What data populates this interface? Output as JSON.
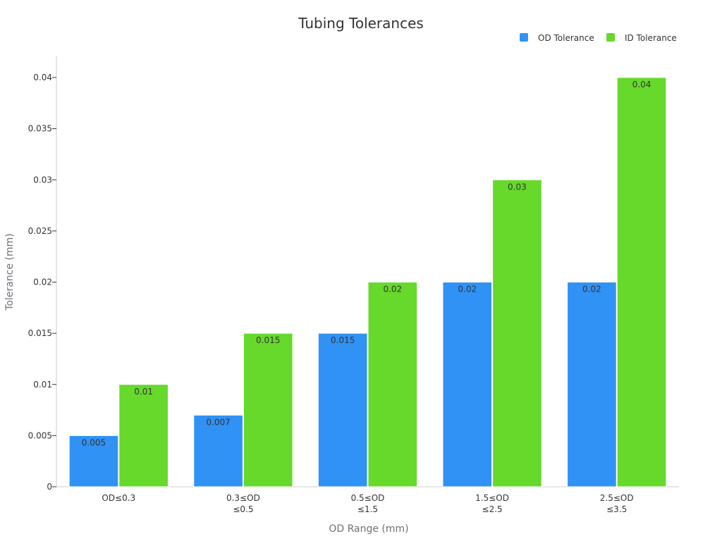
{
  "chart_data": {
    "type": "bar",
    "title": "Tubing Tolerances",
    "xlabel": "OD Range (mm)",
    "ylabel": "Tolerance (mm)",
    "categories": [
      [
        "OD≤0.3"
      ],
      [
        "0.3≤OD",
        "≤0.5"
      ],
      [
        "0.5≤OD",
        "≤1.5"
      ],
      [
        "1.5≤OD",
        "≤2.5"
      ],
      [
        "2.5≤OD",
        "≤3.5"
      ]
    ],
    "series": [
      {
        "name": "OD Tolerance",
        "color": "#3092f5",
        "values": [
          0.005,
          0.007,
          0.015,
          0.02,
          0.02
        ]
      },
      {
        "name": "ID Tolerance",
        "color": "#66d92b",
        "values": [
          0.01,
          0.015,
          0.02,
          0.03,
          0.04
        ]
      }
    ],
    "ylim": [
      0,
      0.04
    ],
    "yticks": [
      "0",
      "0.005",
      "0.01",
      "0.015",
      "0.02",
      "0.025",
      "0.03",
      "0.035",
      "0.04"
    ],
    "legend": "top-right",
    "grid": false,
    "data_labels": true
  }
}
